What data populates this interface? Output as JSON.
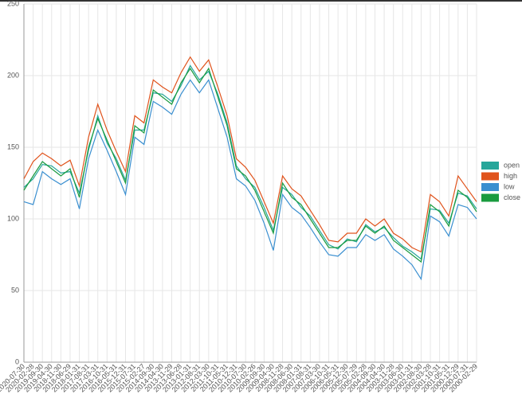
{
  "chart_data": {
    "type": "line",
    "categories": [
      "2020-07-30",
      "2020-02-28",
      "2019-09-30",
      "2019-04-30",
      "2018-11-30",
      "2018-06-29",
      "2018-01-31",
      "2017-08-31",
      "2017-03-31",
      "2016-10-31",
      "2016-05-31",
      "2015-12-31",
      "2015-07-31",
      "2015-02-27",
      "2014-09-30",
      "2014-04-30",
      "2013-11-29",
      "2013-06-28",
      "2013-01-31",
      "2012-08-31",
      "2012-03-30",
      "2011-10-31",
      "2011-05-31",
      "2010-12-31",
      "2010-07-30",
      "2010-02-26",
      "2009-09-30",
      "2009-04-30",
      "2008-11-28",
      "2008-06-30",
      "2008-01-31",
      "2007-08-31",
      "2007-03-30",
      "2006-10-31",
      "2006-05-31",
      "2005-12-30",
      "2005-07-29",
      "2005-02-28",
      "2004-09-30",
      "2004-04-30",
      "2003-11-28",
      "2003-06-30",
      "2003-01-31",
      "2002-08-30",
      "2002-03-28",
      "2001-10-31",
      "2001-05-31",
      "2000-12-29",
      "2000-07-31",
      "2000-02-29"
    ],
    "series": [
      {
        "name": "open",
        "color": "#26a69a",
        "values": [
          122,
          128,
          138,
          137,
          132,
          133,
          118,
          148,
          172,
          153,
          142,
          127,
          162,
          162,
          188,
          187,
          182,
          193,
          207,
          197,
          203,
          187,
          167,
          137,
          128,
          122,
          108,
          92,
          122,
          117,
          108,
          102,
          92,
          82,
          79,
          86,
          84,
          96,
          91,
          94,
          87,
          81,
          77,
          72,
          107,
          106,
          97,
          118,
          116,
          107
        ]
      },
      {
        "name": "high",
        "color": "#e0531c",
        "values": [
          128,
          140,
          146,
          142,
          137,
          141,
          123,
          157,
          180,
          162,
          147,
          133,
          172,
          167,
          197,
          192,
          188,
          202,
          213,
          203,
          211,
          192,
          172,
          142,
          136,
          127,
          112,
          97,
          130,
          121,
          116,
          106,
          96,
          85,
          84,
          90,
          90,
          100,
          95,
          100,
          90,
          86,
          80,
          77,
          117,
          112,
          102,
          130,
          121,
          112
        ]
      },
      {
        "name": "low",
        "color": "#3a8fd0",
        "values": [
          112,
          110,
          133,
          128,
          124,
          128,
          107,
          142,
          162,
          148,
          133,
          117,
          157,
          152,
          182,
          178,
          173,
          187,
          197,
          188,
          197,
          177,
          157,
          128,
          123,
          113,
          97,
          78,
          117,
          108,
          103,
          94,
          84,
          75,
          74,
          80,
          80,
          89,
          85,
          89,
          79,
          74,
          68,
          58,
          102,
          98,
          88,
          110,
          108,
          100
        ]
      },
      {
        "name": "close",
        "color": "#1a9b3f",
        "values": [
          120,
          130,
          140,
          135,
          130,
          135,
          115,
          150,
          170,
          155,
          140,
          125,
          165,
          160,
          190,
          185,
          180,
          195,
          205,
          195,
          205,
          185,
          165,
          135,
          130,
          120,
          105,
          90,
          125,
          115,
          110,
          100,
          90,
          80,
          80,
          85,
          85,
          95,
          90,
          95,
          85,
          80,
          75,
          70,
          110,
          105,
          95,
          120,
          115,
          105
        ]
      }
    ],
    "ylim": [
      0,
      250
    ],
    "yticks": [
      0,
      50,
      100,
      150,
      200,
      250
    ],
    "grid": true,
    "legend": "right"
  }
}
